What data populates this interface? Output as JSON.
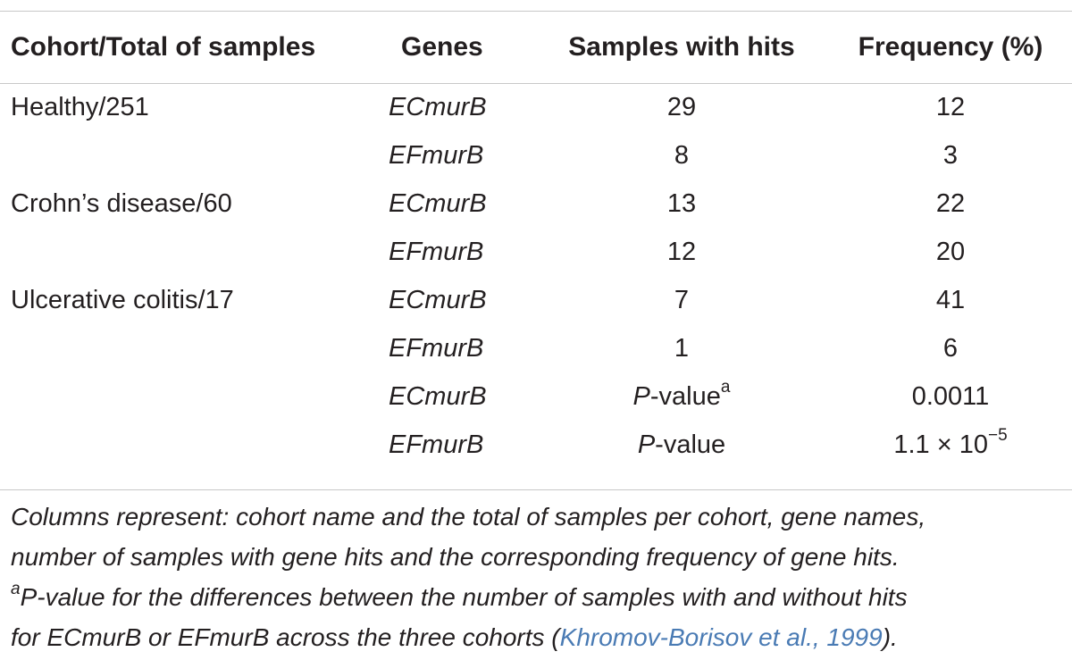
{
  "table": {
    "headers": [
      "Cohort/Total of samples",
      "Genes",
      "Samples with hits",
      "Frequency (%)"
    ],
    "rows": [
      {
        "cohort": "Healthy/251",
        "gene": "ECmurB",
        "hits": "29",
        "freq": "12"
      },
      {
        "cohort": "",
        "gene": "EFmurB",
        "hits": "8",
        "freq": "3"
      },
      {
        "cohort": "Crohn’s disease/60",
        "gene": "ECmurB",
        "hits": "13",
        "freq": "22"
      },
      {
        "cohort": "",
        "gene": "EFmurB",
        "hits": "12",
        "freq": "20"
      },
      {
        "cohort": "Ulcerative colitis/17",
        "gene": "ECmurB",
        "hits": "7",
        "freq": "41"
      },
      {
        "cohort": "",
        "gene": "EFmurB",
        "hits": "1",
        "freq": "6"
      }
    ],
    "pvalue_rows": [
      {
        "gene": "ECmurB",
        "p_letter": "P",
        "label": "-value",
        "superscript": "a",
        "value": "0.0011"
      },
      {
        "gene": "EFmurB",
        "p_letter": "P",
        "label": "-value",
        "superscript": "",
        "value_base": "1.1 × 10",
        "value_exp": "−5"
      }
    ]
  },
  "footnote": {
    "line1": "Columns represent: cohort name and the total of samples per cohort, gene names,",
    "line2": "number of samples with gene hits and the corresponding frequency of gene hits.",
    "line3_sup": "a",
    "line3_p": "P",
    "line3_rest": "-value for the differences between the number of samples with and without hits",
    "line4_pre": "for ECmurB or EFmurB across the three cohorts (",
    "citation": "Khromov-Borisov et al., 1999",
    "line4_post": ")."
  }
}
